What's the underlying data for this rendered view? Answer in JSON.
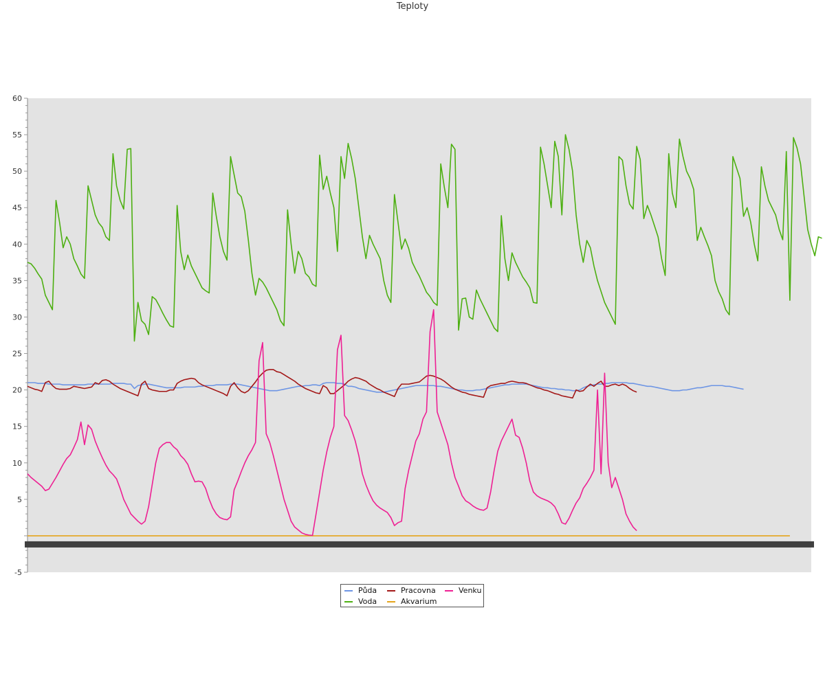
{
  "chart_data": {
    "type": "line",
    "title": "Teploty",
    "xlabel": "",
    "ylabel": "",
    "ylim": [
      -5,
      60
    ],
    "yticks": [
      -5,
      5,
      10,
      15,
      20,
      25,
      30,
      35,
      40,
      45,
      50,
      55,
      60
    ],
    "x_points": 221,
    "grid": false,
    "background": "#e3e3e3",
    "legend_position": "bottom-center",
    "series": [
      {
        "name": "Půda",
        "color": "#6d95e4",
        "values": [
          21,
          21,
          21,
          20.9,
          20.9,
          20.9,
          20.8,
          20.8,
          20.8,
          20.8,
          20.7,
          20.7,
          20.7,
          20.7,
          20.7,
          20.7,
          20.7,
          20.8,
          20.8,
          20.8,
          20.8,
          20.8,
          20.8,
          20.8,
          20.9,
          20.9,
          20.9,
          20.9,
          20.8,
          20.8,
          20.2,
          20.6,
          20.7,
          20.8,
          20.8,
          20.7,
          20.6,
          20.5,
          20.4,
          20.3,
          20.3,
          20.3,
          20.3,
          20.3,
          20.4,
          20.4,
          20.4,
          20.4,
          20.5,
          20.5,
          20.6,
          20.6,
          20.6,
          20.7,
          20.7,
          20.7,
          20.7,
          20.8,
          20.8,
          20.8,
          20.7,
          20.6,
          20.5,
          20.4,
          20.3,
          20.2,
          20.1,
          20,
          19.9,
          19.9,
          19.9,
          20,
          20.1,
          20.2,
          20.3,
          20.4,
          20.5,
          20.5,
          20.6,
          20.6,
          20.7,
          20.7,
          20.6,
          20.9,
          21,
          21,
          21,
          20.9,
          20.9,
          20.8,
          20.5,
          20.5,
          20.4,
          20.2,
          20.1,
          20,
          19.9,
          19.8,
          19.7,
          19.7,
          19.7,
          19.8,
          19.9,
          20,
          20.1,
          20.2,
          20.3,
          20.4,
          20.5,
          20.6,
          20.6,
          20.6,
          20.6,
          20.6,
          20.6,
          20.5,
          20.5,
          20.4,
          20.3,
          20.2,
          20.1,
          20,
          20,
          19.9,
          19.9,
          19.9,
          20,
          20,
          20.1,
          20.2,
          20.3,
          20.4,
          20.5,
          20.6,
          20.7,
          20.7,
          20.8,
          20.8,
          20.8,
          20.8,
          20.8,
          20.7,
          20.6,
          20.5,
          20.4,
          20.3,
          20.3,
          20.2,
          20.2,
          20.1,
          20.1,
          20,
          20,
          19.9,
          19.9,
          20,
          20.3,
          20.5,
          20.6,
          20.7,
          20.8,
          20.8,
          20.9,
          20.9,
          21,
          21,
          21,
          21,
          21,
          20.9,
          20.9,
          20.8,
          20.7,
          20.6,
          20.5,
          20.5,
          20.4,
          20.3,
          20.2,
          20.1,
          20,
          19.9,
          19.9,
          19.9,
          20,
          20,
          20.1,
          20.2,
          20.3,
          20.3,
          20.4,
          20.5,
          20.6,
          20.6,
          20.6,
          20.6,
          20.5,
          20.5,
          20.4,
          20.3,
          20.2,
          20.1
        ]
      },
      {
        "name": "Voda",
        "color": "#4caf10",
        "values": [
          37.5,
          37.3,
          36.7,
          35.9,
          35.2,
          33,
          32,
          31,
          46,
          43,
          39.5,
          41,
          40,
          38,
          37,
          35.9,
          35.3,
          48,
          46,
          44,
          42.9,
          42.3,
          41,
          40.5,
          52.4,
          48,
          46,
          44.8,
          53,
          53.1,
          26.7,
          32,
          29.5,
          29,
          27.6,
          32.8,
          32.4,
          31.5,
          30.5,
          29.6,
          28.8,
          28.6,
          45.3,
          39,
          36.5,
          38.5,
          37,
          36,
          35,
          34,
          33.6,
          33.3,
          47,
          43.8,
          41,
          39,
          37.8,
          52,
          49.5,
          47,
          46.5,
          44.5,
          40.5,
          36,
          33,
          35.3,
          34.8,
          34,
          33,
          32,
          31,
          29.5,
          28.8,
          44.7,
          40,
          36,
          39,
          38,
          36,
          35.5,
          34.5,
          34.2,
          52.2,
          47.5,
          49.3,
          47,
          45,
          39,
          52,
          49,
          53.8,
          51.7,
          49,
          45,
          41,
          38,
          41.2,
          40,
          39,
          38,
          35,
          33,
          32,
          46.8,
          43,
          39.3,
          40.7,
          39.4,
          37.5,
          36.5,
          35.6,
          34.5,
          33.4,
          32.8,
          32,
          31.6,
          51,
          47.8,
          45,
          53.7,
          53,
          28.2,
          32.5,
          32.6,
          30,
          29.7,
          33.7,
          32.5,
          31.5,
          30.5,
          29.5,
          28.5,
          28,
          43.9,
          38,
          35,
          38.8,
          37.5,
          36.5,
          35.5,
          34.8,
          34,
          32,
          31.9,
          53.3,
          51,
          48,
          45,
          54.1,
          52,
          44,
          55,
          53,
          50,
          44,
          40,
          37.5,
          40.5,
          39.5,
          37,
          35,
          33.5,
          32,
          31,
          30,
          29,
          52,
          51.5,
          48,
          45.5,
          44.8,
          53.4,
          51.6,
          43.5,
          45.3,
          44,
          42.5,
          41,
          38,
          35.7,
          52.4,
          47,
          45,
          54.4,
          52,
          50,
          49,
          47.5,
          40.5,
          42.3,
          41,
          39.8,
          38.4,
          35,
          33.5,
          32.5,
          31,
          30.3,
          52,
          50.5,
          49,
          43.8,
          45,
          43,
          40,
          37.7,
          50.6,
          48,
          46,
          45,
          44,
          42,
          40.6,
          52.7,
          32.3,
          54.6,
          53.2,
          51,
          46.5,
          42,
          40,
          38.4,
          41,
          40.8
        ]
      },
      {
        "name": "Pracovna",
        "color": "#a31717",
        "values": [
          20.5,
          20.3,
          20.1,
          20,
          19.8,
          21,
          21.2,
          20.6,
          20.2,
          20.1,
          20.1,
          20.1,
          20.2,
          20.5,
          20.4,
          20.3,
          20.2,
          20.3,
          20.4,
          21,
          20.8,
          21.3,
          21.4,
          21.2,
          20.8,
          20.5,
          20.2,
          20,
          19.8,
          19.6,
          19.4,
          19.2,
          20.8,
          21.2,
          20.2,
          20,
          19.9,
          19.8,
          19.8,
          19.8,
          20,
          20,
          20.9,
          21.2,
          21.4,
          21.5,
          21.6,
          21.5,
          21,
          20.7,
          20.5,
          20.3,
          20.1,
          19.9,
          19.7,
          19.5,
          19.2,
          20.5,
          21,
          20.3,
          19.8,
          19.6,
          19.9,
          20.5,
          21.1,
          21.8,
          22.3,
          22.7,
          22.8,
          22.8,
          22.5,
          22.4,
          22.1,
          21.8,
          21.5,
          21.2,
          20.8,
          20.5,
          20.2,
          20,
          19.8,
          19.6,
          19.5,
          20.6,
          20.3,
          19.5,
          19.5,
          19.9,
          20.3,
          20.7,
          21.2,
          21.5,
          21.7,
          21.6,
          21.4,
          21.2,
          20.8,
          20.5,
          20.2,
          20,
          19.7,
          19.5,
          19.3,
          19.1,
          20.2,
          20.8,
          20.8,
          20.8,
          20.9,
          21,
          21.1,
          21.5,
          21.9,
          22,
          21.9,
          21.7,
          21.5,
          21.2,
          20.8,
          20.4,
          20.1,
          19.9,
          19.7,
          19.6,
          19.4,
          19.3,
          19.2,
          19.1,
          19,
          20.3,
          20.6,
          20.7,
          20.8,
          20.9,
          20.9,
          21.1,
          21.2,
          21.1,
          21,
          21,
          20.9,
          20.7,
          20.5,
          20.3,
          20.2,
          20,
          19.9,
          19.7,
          19.5,
          19.4,
          19.2,
          19.1,
          19,
          18.9,
          20,
          19.8,
          19.9,
          20.4,
          20.8,
          20.5,
          20.9,
          21.2,
          20.5,
          20.5,
          20.7,
          20.8,
          20.6,
          20.8,
          20.6,
          20.2,
          19.9,
          19.7
        ]
      },
      {
        "name": "Akvarium",
        "color": "#e5a51a",
        "values": [
          0,
          0,
          0,
          0,
          0,
          0,
          0,
          0,
          0,
          0,
          0,
          0,
          0,
          0,
          0,
          0,
          0,
          0,
          0,
          0,
          0,
          0,
          0,
          0,
          0,
          0,
          0,
          0,
          0,
          0,
          0,
          0,
          0,
          0,
          0,
          0,
          0,
          0,
          0,
          0,
          0,
          0,
          0,
          0,
          0,
          0,
          0,
          0,
          0,
          0,
          0,
          0,
          0,
          0,
          0,
          0,
          0,
          0,
          0,
          0,
          0,
          0,
          0,
          0,
          0,
          0,
          0,
          0,
          0,
          0,
          0,
          0,
          0,
          0,
          0,
          0,
          0,
          0,
          0,
          0,
          0,
          0,
          0,
          0,
          0,
          0,
          0,
          0,
          0,
          0,
          0,
          0,
          0,
          0,
          0,
          0,
          0,
          0,
          0,
          0,
          0,
          0,
          0,
          0,
          0,
          0,
          0,
          0,
          0,
          0,
          0,
          0,
          0,
          0,
          0,
          0,
          0,
          0,
          0,
          0,
          0,
          0,
          0,
          0,
          0,
          0,
          0,
          0,
          0,
          0,
          0,
          0,
          0,
          0,
          0,
          0,
          0,
          0,
          0,
          0,
          0,
          0,
          0,
          0,
          0,
          0,
          0,
          0,
          0,
          0,
          0,
          0,
          0,
          0,
          0,
          0,
          0,
          0,
          0,
          0,
          0,
          0,
          0,
          0,
          0,
          0,
          0,
          0,
          0,
          0,
          0,
          0,
          0,
          0,
          0,
          0,
          0,
          0,
          0,
          0,
          0,
          0,
          0,
          0,
          0,
          0,
          0,
          0,
          0,
          0,
          0,
          0,
          0,
          0,
          0,
          0,
          0,
          0,
          0,
          0,
          0,
          0,
          0,
          0,
          0,
          0,
          0,
          0,
          0,
          0,
          0,
          0,
          0,
          0,
          0
        ]
      },
      {
        "name": "Venku",
        "color": "#ee1f93",
        "values": [
          8.5,
          8,
          7.6,
          7.2,
          6.8,
          6.2,
          6.4,
          7.2,
          8,
          8.9,
          9.8,
          10.6,
          11.1,
          12.1,
          13.2,
          15.6,
          12.5,
          15.2,
          14.6,
          13,
          11.8,
          10.7,
          9.7,
          8.9,
          8.4,
          7.8,
          6.5,
          5,
          4,
          3,
          2.5,
          2,
          1.6,
          2,
          4,
          7,
          10,
          12,
          12.5,
          12.8,
          12.8,
          12.2,
          11.8,
          11,
          10.5,
          9.8,
          8.5,
          7.4,
          7.5,
          7.4,
          6.5,
          5,
          3.8,
          3,
          2.5,
          2.3,
          2.2,
          2.6,
          6.3,
          7.5,
          8.8,
          10,
          11,
          11.8,
          12.8,
          24,
          26.5,
          14,
          12.8,
          11,
          9,
          7,
          5,
          3.5,
          2,
          1.2,
          0.8,
          0.4,
          0.2,
          0.1,
          0.05,
          3,
          6,
          9,
          11.5,
          13.5,
          15,
          25.5,
          27.5,
          16.5,
          15.8,
          14.5,
          13,
          11,
          8.5,
          7,
          5.8,
          4.8,
          4.2,
          3.8,
          3.5,
          3.2,
          2.5,
          1.4,
          1.8,
          2,
          6.5,
          9,
          11,
          13,
          14,
          16,
          17,
          28,
          31,
          17,
          15.5,
          14,
          12.5,
          10,
          8,
          6.8,
          5.5,
          4.8,
          4.5,
          4.1,
          3.8,
          3.6,
          3.5,
          3.8,
          6,
          9,
          11.6,
          13,
          14,
          15,
          16,
          13.8,
          13.5,
          12,
          10,
          7.5,
          6,
          5.5,
          5.2,
          5,
          4.8,
          4.5,
          4,
          3,
          1.8,
          1.6,
          2.4,
          3.5,
          4.5,
          5.2,
          6.5,
          7.2,
          8,
          9,
          20,
          8.5,
          22.3,
          10,
          6.6,
          8,
          6.5,
          5,
          3,
          2,
          1.2,
          0.7
        ]
      }
    ]
  },
  "legend": {
    "items": [
      {
        "label": "Půda",
        "color": "#6d95e4"
      },
      {
        "label": "Pracovna",
        "color": "#a31717"
      },
      {
        "label": "Venku",
        "color": "#ee1f93"
      },
      {
        "label": "Voda",
        "color": "#4caf10"
      },
      {
        "label": "Akvarium",
        "color": "#e5a51a"
      }
    ]
  }
}
